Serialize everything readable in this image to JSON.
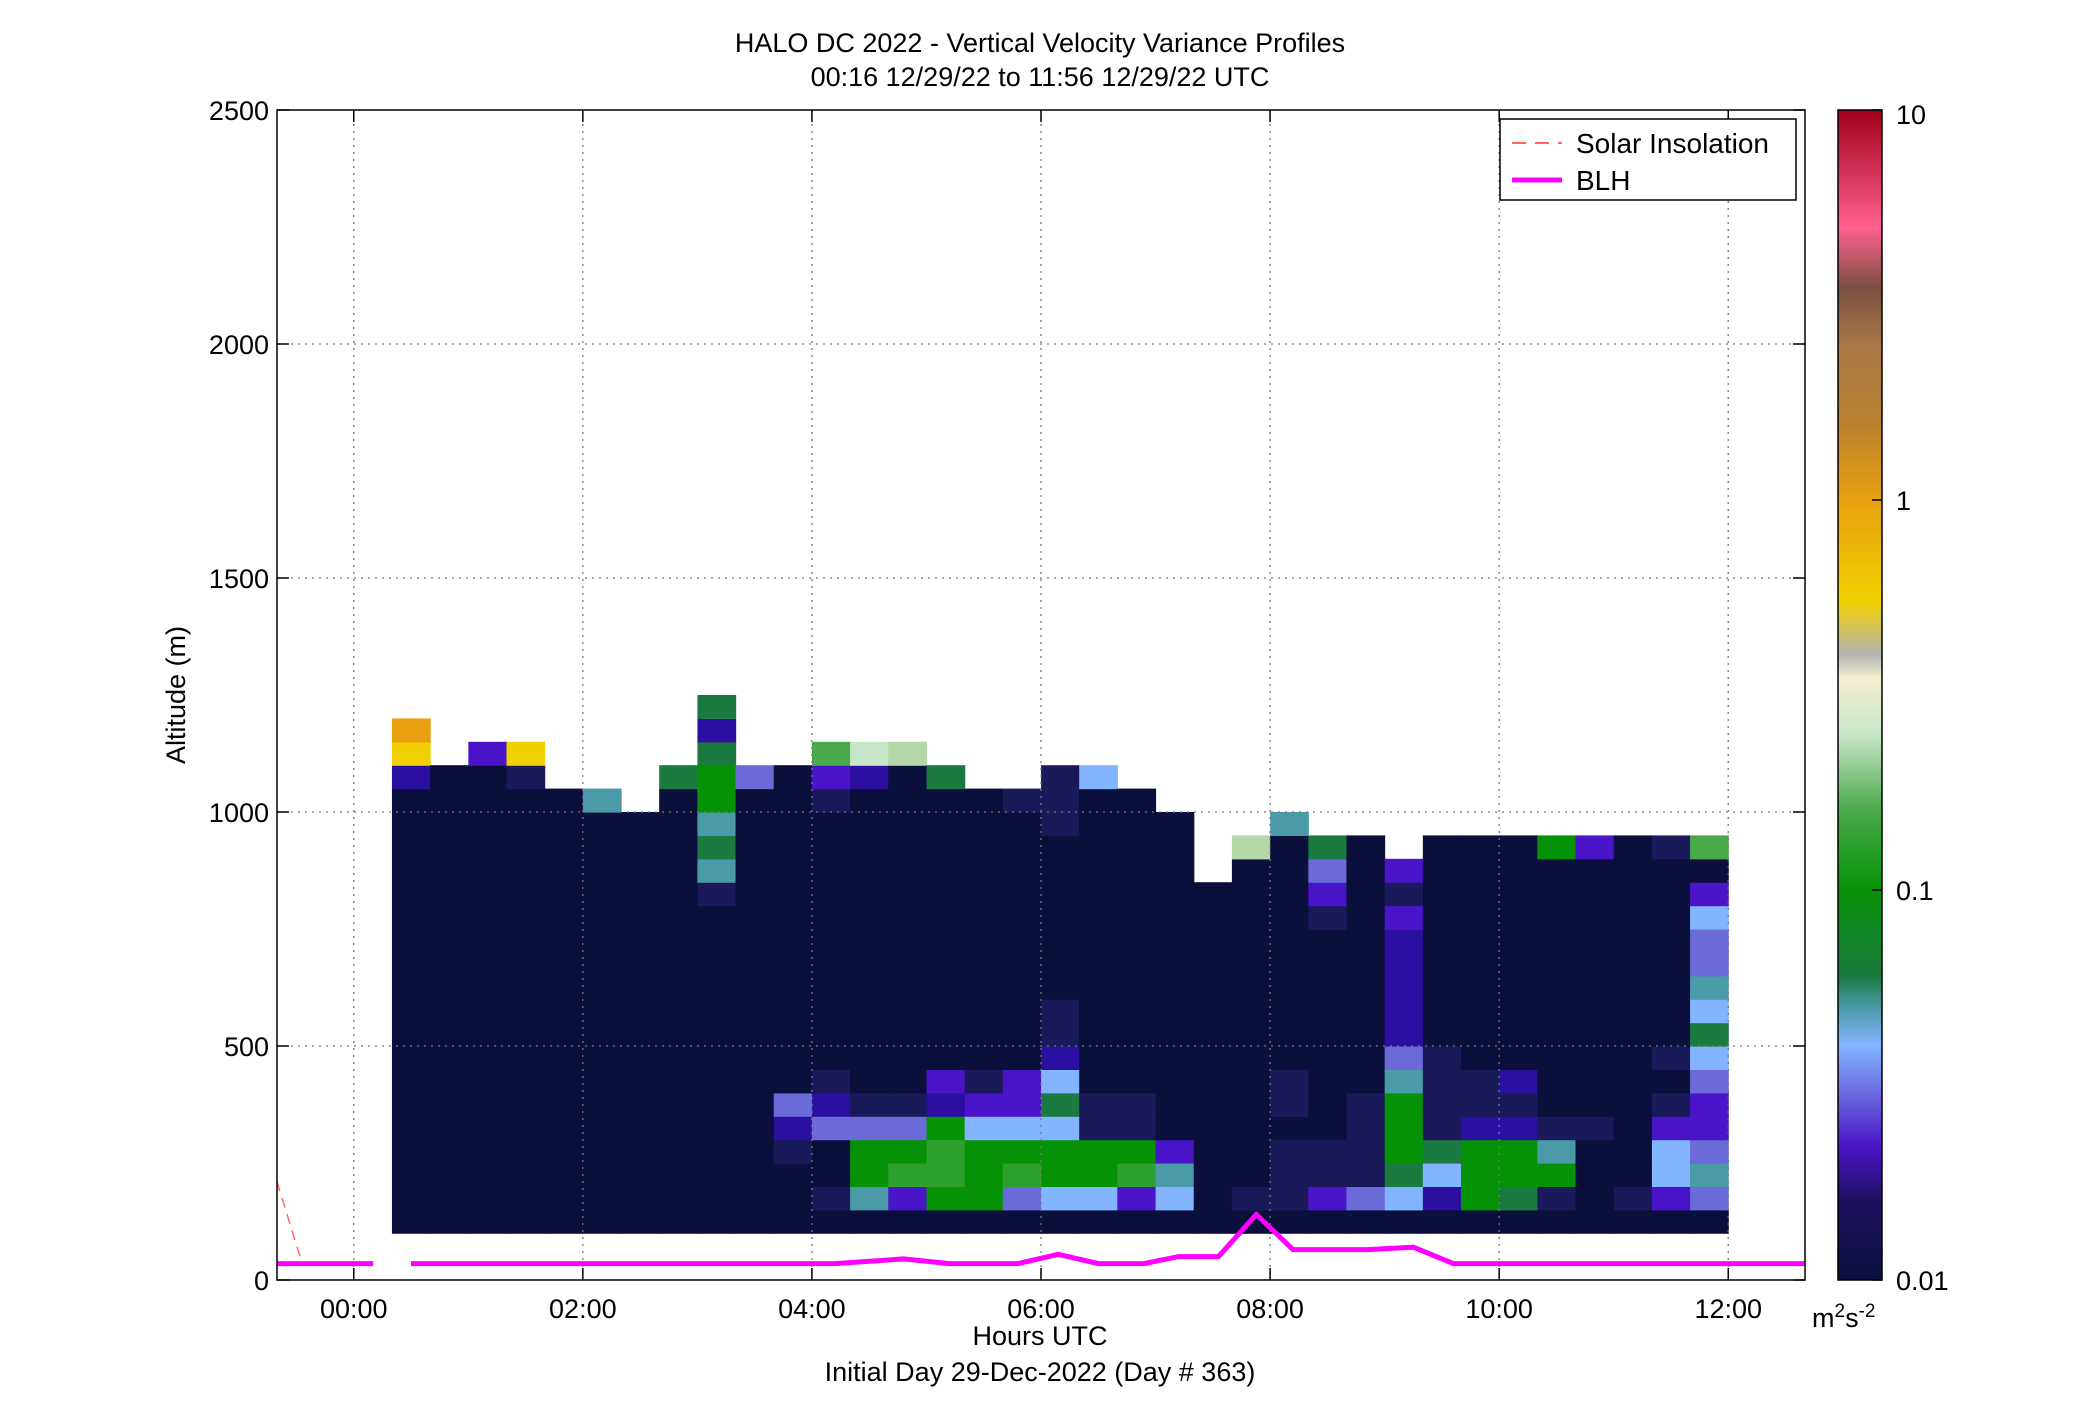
{
  "chart_data": {
    "type": "heatmap",
    "title": "HALO DC 2022 - Vertical Velocity Variance Profiles",
    "subtitle": "00:16 12/29/22 to 11:56 12/29/22  UTC",
    "xlabel": "Hours UTC",
    "xlabel2": "Initial Day 29-Dec-2022 (Day # 363)",
    "ylabel": "Altitude (m)",
    "x_range": [
      -0.67,
      12.67
    ],
    "y_range": [
      0,
      2500
    ],
    "x_ticks": [
      {
        "value": 0,
        "label": "00:00"
      },
      {
        "value": 2,
        "label": "02:00"
      },
      {
        "value": 4,
        "label": "04:00"
      },
      {
        "value": 6,
        "label": "06:00"
      },
      {
        "value": 8,
        "label": "08:00"
      },
      {
        "value": 10,
        "label": "10:00"
      },
      {
        "value": 12,
        "label": "12:00"
      }
    ],
    "y_ticks": [
      {
        "value": 0,
        "label": "0"
      },
      {
        "value": 500,
        "label": "500"
      },
      {
        "value": 1000,
        "label": "1000"
      },
      {
        "value": 1500,
        "label": "1500"
      },
      {
        "value": 2000,
        "label": "2000"
      },
      {
        "value": 2500,
        "label": "2500"
      }
    ],
    "grid": true,
    "legend": {
      "placement": "top-right",
      "entries": [
        {
          "label": "Solar Insolation",
          "style": "dashed",
          "color": "#ff6666"
        },
        {
          "label": "BLH",
          "style": "solid",
          "color": "#ff00ff"
        }
      ]
    },
    "colorbar": {
      "scale": "log",
      "range": [
        0.01,
        10
      ],
      "ticks": [
        {
          "value": 0.01,
          "label": "0.01"
        },
        {
          "value": 0.1,
          "label": "0.1"
        },
        {
          "value": 1,
          "label": "1"
        },
        {
          "value": 10,
          "label": "10"
        }
      ],
      "unit_base": "m",
      "unit_sup1": "2",
      "unit_mid": "s",
      "unit_sup2": "-2",
      "colors": [
        {
          "value": 0.01,
          "color": "#0a0f3c"
        },
        {
          "value": 0.016,
          "color": "#1e1060"
        },
        {
          "value": 0.022,
          "color": "#4a14c8"
        },
        {
          "value": 0.03,
          "color": "#6b6ae0"
        },
        {
          "value": 0.04,
          "color": "#82b4ff"
        },
        {
          "value": 0.05,
          "color": "#4a9aa8"
        },
        {
          "value": 0.06,
          "color": "#1a7a40"
        },
        {
          "value": 0.1,
          "color": "#069206"
        },
        {
          "value": 0.16,
          "color": "#4aaa4a"
        },
        {
          "value": 0.25,
          "color": "#c8e6c8"
        },
        {
          "value": 0.35,
          "color": "#f4f0d0"
        },
        {
          "value": 0.4,
          "color": "#b4b4b4"
        },
        {
          "value": 0.55,
          "color": "#f0d000"
        },
        {
          "value": 1.0,
          "color": "#e8a010"
        },
        {
          "value": 1.6,
          "color": "#b88030"
        },
        {
          "value": 2.5,
          "color": "#a87848"
        },
        {
          "value": 3.5,
          "color": "#7a5040"
        },
        {
          "value": 5.0,
          "color": "#ff6090"
        },
        {
          "value": 10.0,
          "color": "#a00018"
        }
      ]
    },
    "heatmap": {
      "time_step_hours": 0.333,
      "alt_step_m": 50,
      "cell_colors": {
        "N": "#0a0f3c",
        "D": "#1a1a5a",
        "P": "#2a0fa0",
        "V": "#4a14c8",
        "L": "#6a6ad8",
        "B": "#82b4ff",
        "T": "#4a9aa8",
        "E": "#1a7a40",
        "G": "#069206",
        "H": "#2ea02e",
        "M": "#4aaa4a",
        "W": "#c8e6c8",
        "A": "#b4d8a8",
        "Y": "#f0d000",
        "O": "#e8a010"
      },
      "columns": [
        {
          "time": 0.5,
          "cells": "NNNNNNNNNNNNNNNNNNNPYO"
        },
        {
          "time": 0.833,
          "cells": "NNNNNNNNNNNNNNNNNNNN"
        },
        {
          "time": 1.167,
          "cells": "NNNNNNNNNNNNNNNNNNNNV"
        },
        {
          "time": 1.5,
          "cells": "NNNNNNNNNNNNNNNNNNNDY"
        },
        {
          "time": 1.833,
          "cells": "NNNNNNNNNNNNNNNNNNN"
        },
        {
          "time": 2.167,
          "cells": "NNNNNNNNNNNNNNNNNNT"
        },
        {
          "time": 2.5,
          "cells": "NNNNNNNNNNNNNNNNNN"
        },
        {
          "time": 2.833,
          "cells": "NNNNNNNNNNNNNNNNNNNE"
        },
        {
          "time": 3.167,
          "cells": "NNNNNNNNNNNNNNDTETGGEPE"
        },
        {
          "time": 3.5,
          "cells": "NNNNNNNNNNNNNNNNNNNL"
        },
        {
          "time": 3.833,
          "cells": "NNNDPLNNNNNNNNNNNNNN"
        },
        {
          "time": 4.167,
          "cells": "NDNNLPDNNNNNNNNNNNDVM"
        },
        {
          "time": 4.5,
          "cells": "NTGGLDNNNNNNNNNNNNNPW"
        },
        {
          "time": 4.833,
          "cells": "NVHGLDNNNNNNNNNNNNNNA"
        },
        {
          "time": 5.167,
          "cells": "NGHHGPVNNNNNNNNNNNNE"
        },
        {
          "time": 5.5,
          "cells": "NGGGBVDNNNNNNNNNNNN"
        },
        {
          "time": 5.833,
          "cells": "NLHGBVVNNNNNNNNNNND"
        },
        {
          "time": 6.167,
          "cells": "NBGGBEBPDDNNNNNNNDDD"
        },
        {
          "time": 6.5,
          "cells": "NBGGDDNNNNNNNNNNNNNB"
        },
        {
          "time": 6.833,
          "cells": "NVHGDDNNNNNNNNNNNNN"
        },
        {
          "time": 7.167,
          "cells": "NBTVNNNNNNNNNNNNNN"
        },
        {
          "time": 7.5,
          "cells": "NNNNNNNNNNNNNNN"
        },
        {
          "time": 7.833,
          "cells": "NDNNNNNNNNNNNNNNA"
        },
        {
          "time": 8.167,
          "cells": "NDDDNDDNNNNNNNNNNT"
        },
        {
          "time": 8.5,
          "cells": "NVDDNNNNNNNNNDVLE"
        },
        {
          "time": 8.833,
          "cells": "NLDDDDNNNNNNNNNNN"
        },
        {
          "time": 9.167,
          "cells": "NBEGGGTLPPPPPVDV"
        },
        {
          "time": 9.5,
          "cells": "NPBEDDDDNNNNNNNNN"
        },
        {
          "time": 9.833,
          "cells": "NGGGPDDNNNNNNNNNN"
        },
        {
          "time": 10.167,
          "cells": "NEGGPDPNNNNNNNNNN"
        },
        {
          "time": 10.5,
          "cells": "NDGTDNNNNNNNNNNNG"
        },
        {
          "time": 10.833,
          "cells": "NNNNDNNNNNNNNNNNV"
        },
        {
          "time": 11.167,
          "cells": "NDNNNNNNNNNNNNNNN"
        },
        {
          "time": 11.5,
          "cells": "NVBBVDNDNNNNNNNND"
        },
        {
          "time": 11.833,
          "cells": "NLTLVVLBEBTLLBVNM"
        }
      ]
    },
    "series": [
      {
        "name": "BLH",
        "points": [
          [
            -0.67,
            35
          ],
          [
            0.15,
            35
          ],
          [
            0.5,
            35
          ],
          [
            4.2,
            35
          ],
          [
            4.8,
            45
          ],
          [
            5.2,
            35
          ],
          [
            5.8,
            35
          ],
          [
            6.15,
            55
          ],
          [
            6.5,
            35
          ],
          [
            6.9,
            35
          ],
          [
            7.2,
            50
          ],
          [
            7.55,
            50
          ],
          [
            7.88,
            140
          ],
          [
            8.2,
            65
          ],
          [
            8.85,
            65
          ],
          [
            9.25,
            70
          ],
          [
            9.6,
            35
          ],
          [
            12.67,
            35
          ]
        ]
      },
      {
        "name": "Solar Insolation",
        "points": [
          [
            -0.67,
            210
          ],
          [
            -0.45,
            35
          ]
        ]
      }
    ]
  }
}
